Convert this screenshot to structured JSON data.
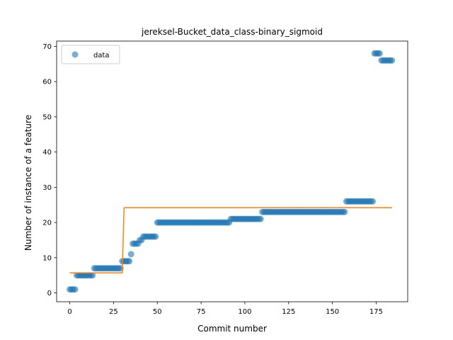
{
  "chart_data": {
    "type": "scatter",
    "title": "jereksel-Bucket_data_class-binary_sigmoid",
    "xlabel": "Commit number",
    "ylabel": "Number of instance of a feature",
    "xlim": [
      -7.5,
      193
    ],
    "ylim": [
      -2.5,
      71.5
    ],
    "xticks": [
      0,
      25,
      50,
      75,
      100,
      125,
      150,
      175
    ],
    "yticks": [
      0,
      10,
      20,
      30,
      40,
      50,
      60,
      70
    ],
    "grid": false,
    "legend_position": "top-left",
    "colors": {
      "data": "#1f77b4",
      "fit": "#ff7f0e"
    },
    "series": [
      {
        "name": "data",
        "kind": "scatter",
        "segments": [
          {
            "x_start": 0,
            "x_end": 3,
            "y": 1
          },
          {
            "x_start": 4,
            "x_end": 13,
            "y": 5
          },
          {
            "x_start": 14,
            "x_end": 29,
            "y": 7
          },
          {
            "x_start": 30,
            "x_end": 34,
            "y": 9
          },
          {
            "x_start": 35,
            "x_end": 35,
            "y": 11
          },
          {
            "x_start": 36,
            "x_end": 39,
            "y": 14
          },
          {
            "x_start": 40,
            "x_end": 41,
            "y": 15
          },
          {
            "x_start": 42,
            "x_end": 49,
            "y": 16
          },
          {
            "x_start": 50,
            "x_end": 91,
            "y": 20
          },
          {
            "x_start": 92,
            "x_end": 109,
            "y": 21
          },
          {
            "x_start": 110,
            "x_end": 157,
            "y": 23
          },
          {
            "x_start": 158,
            "x_end": 173,
            "y": 26
          },
          {
            "x_start": 174,
            "x_end": 177,
            "y": 68
          },
          {
            "x_start": 178,
            "x_end": 184,
            "y": 66
          }
        ]
      },
      {
        "name": "",
        "kind": "line",
        "x": [
          0,
          30,
          31,
          184
        ],
        "y": [
          5.7,
          5.7,
          24.2,
          24.2
        ]
      }
    ]
  }
}
